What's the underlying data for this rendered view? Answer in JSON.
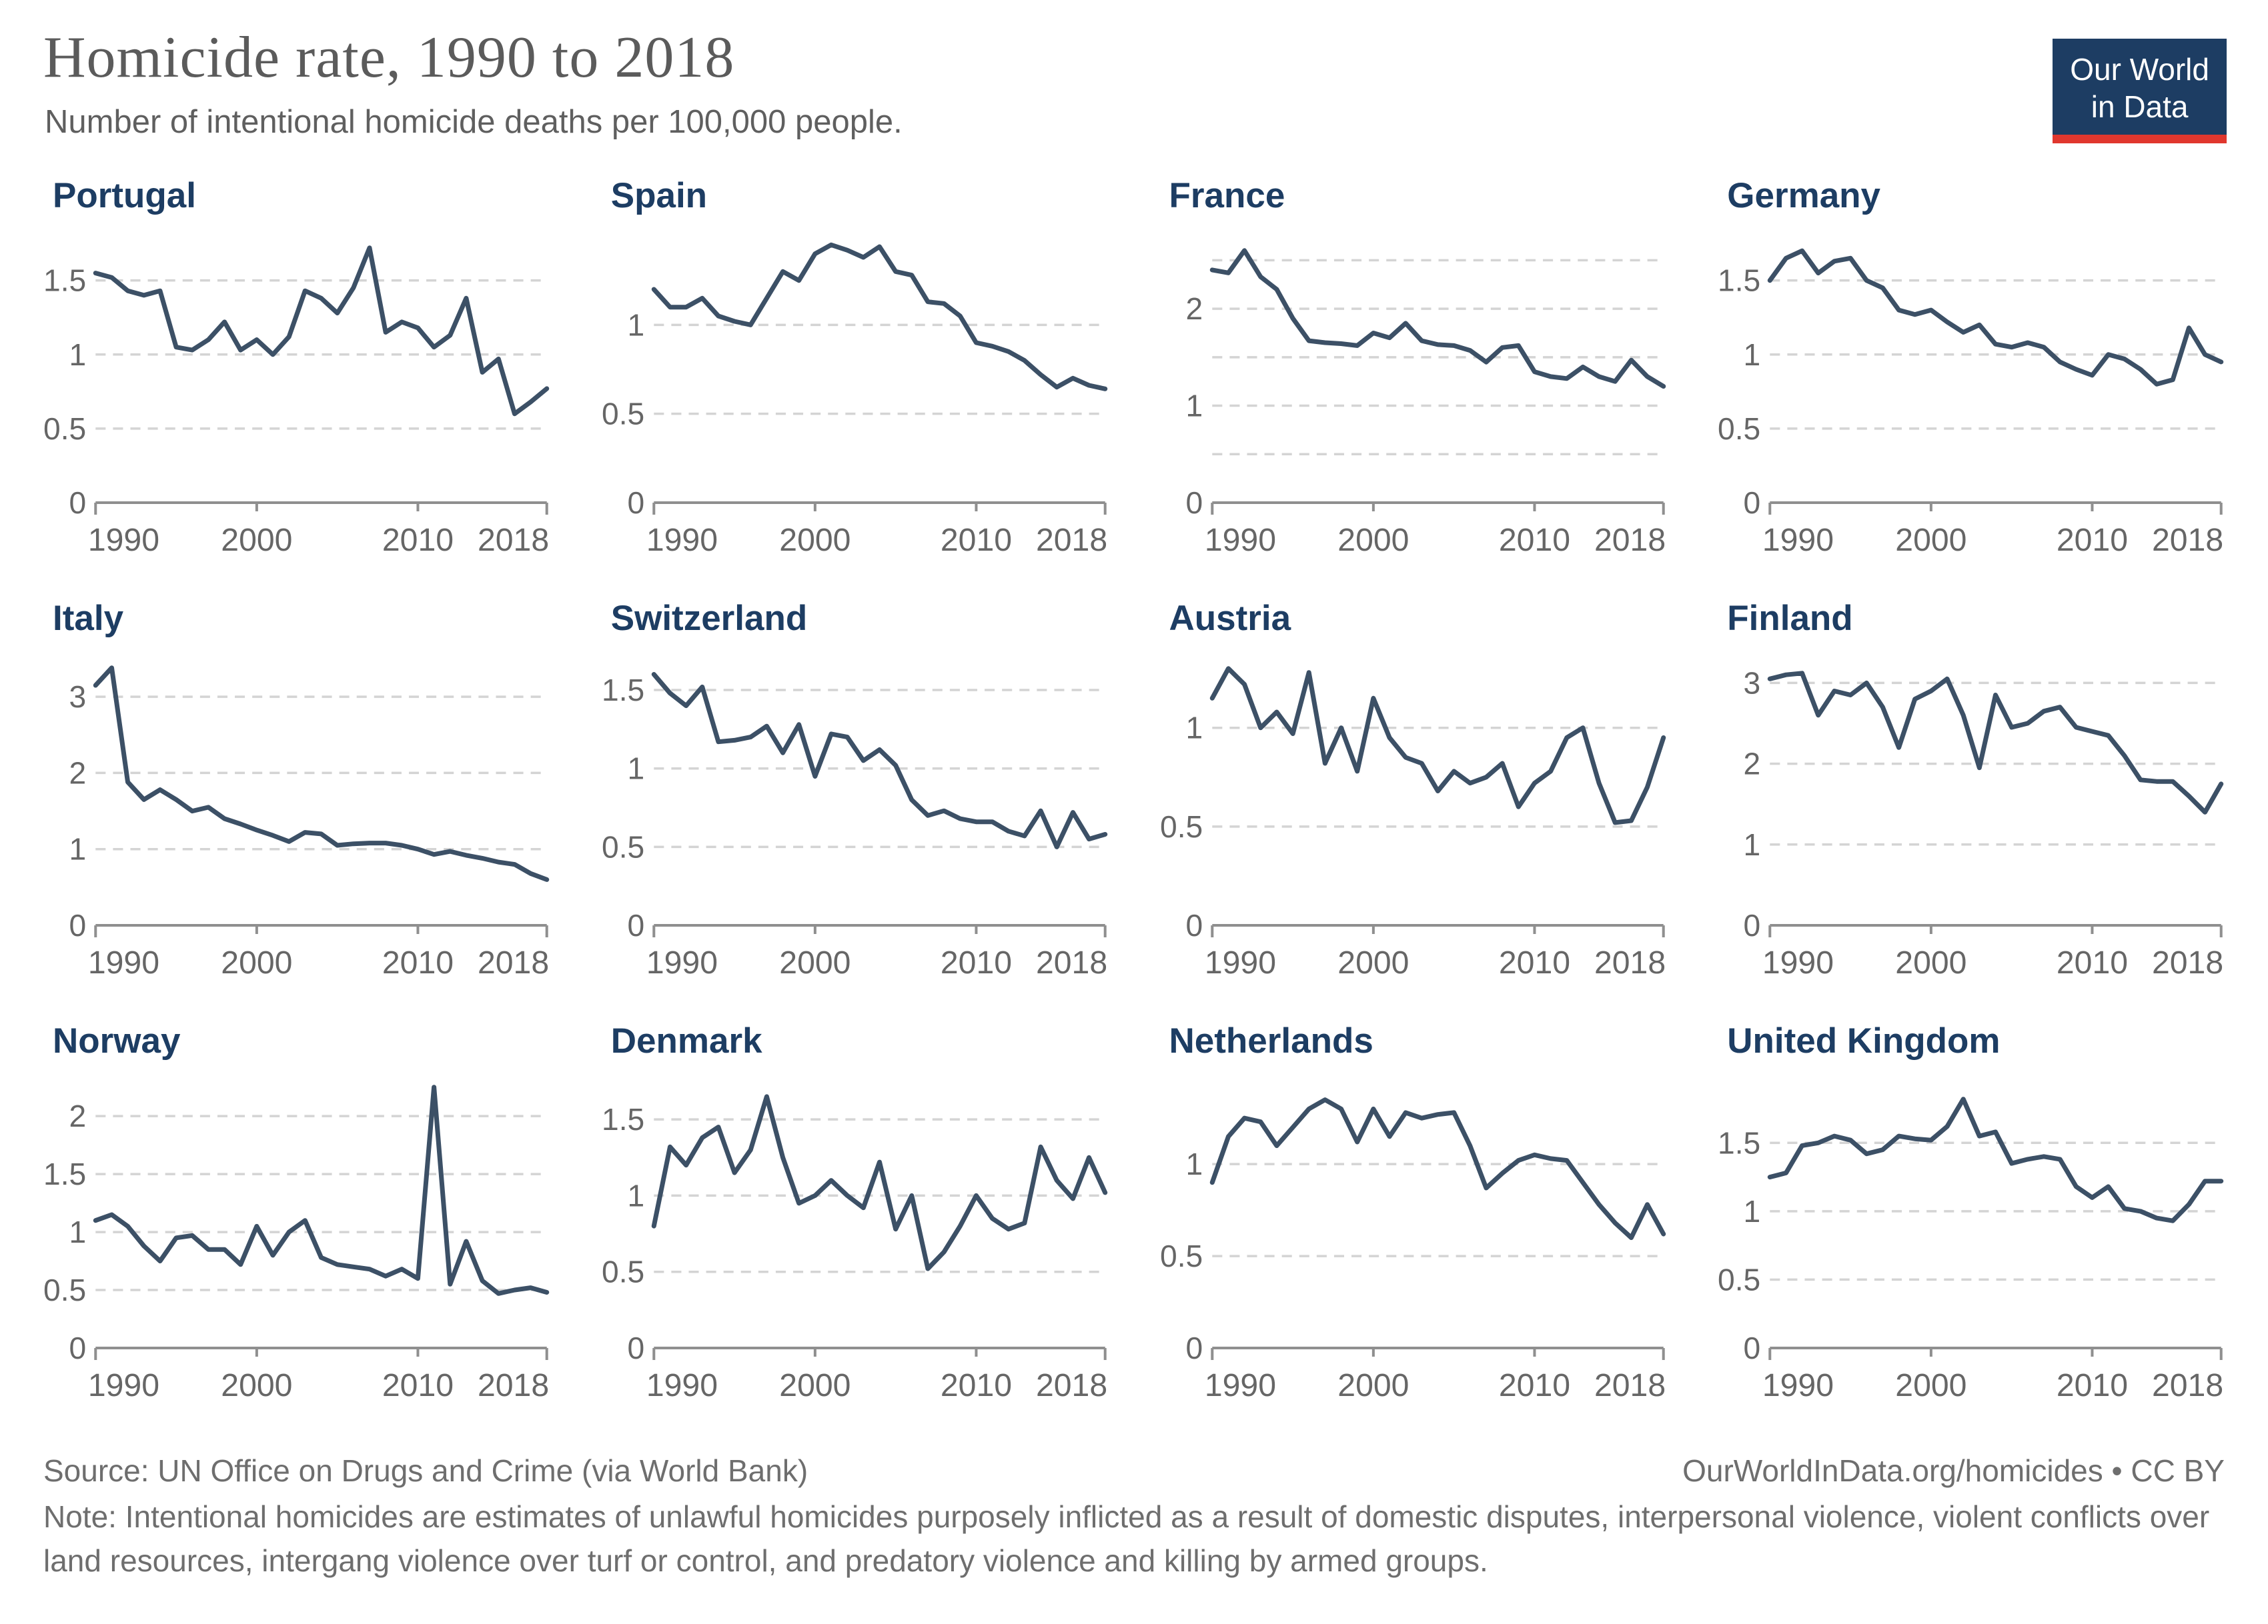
{
  "header": {
    "title": "Homicide rate, 1990 to 2018",
    "subtitle": "Number of intentional homicide deaths per 100,000 people."
  },
  "logo": {
    "line1": "Our World",
    "line2": "in Data"
  },
  "colors": {
    "line": "#3c5066",
    "country_title": "#1d3d63",
    "axis_text": "#666666",
    "gridline": "#d4d4d4",
    "axis_line": "#8f8f8f",
    "logo_bg": "#1d3d63",
    "logo_accent": "#e0372e"
  },
  "x_axis": {
    "range": [
      1990,
      2018
    ],
    "ticks": [
      {
        "year": 1990,
        "label": "1990"
      },
      {
        "year": 2000,
        "label": "2000"
      },
      {
        "year": 2010,
        "label": "2010"
      },
      {
        "year": 2018,
        "label": "2018"
      }
    ]
  },
  "chart_data": [
    {
      "type": "line",
      "title": "Portugal",
      "ylim": [
        0,
        1.8
      ],
      "yticks": [
        {
          "value": 0,
          "label": "0"
        },
        {
          "value": 0.5,
          "label": "0.5"
        },
        {
          "value": 1,
          "label": "1"
        },
        {
          "value": 1.5,
          "label": "1.5"
        }
      ],
      "gridlines": [
        0.5,
        1,
        1.5
      ],
      "x_start": 1990,
      "x_end": 2018,
      "values": [
        1.55,
        1.52,
        1.43,
        1.4,
        1.43,
        1.05,
        1.03,
        1.1,
        1.22,
        1.03,
        1.1,
        1.0,
        1.12,
        1.43,
        1.38,
        1.28,
        1.45,
        1.72,
        1.15,
        1.22,
        1.18,
        1.05,
        1.13,
        1.38,
        0.88,
        0.97,
        0.6,
        0.68,
        0.77
      ]
    },
    {
      "type": "line",
      "title": "Spain",
      "ylim": [
        0,
        1.5
      ],
      "yticks": [
        {
          "value": 0,
          "label": "0"
        },
        {
          "value": 0.5,
          "label": "0.5"
        },
        {
          "value": 1,
          "label": "1"
        }
      ],
      "gridlines": [
        0.5,
        1
      ],
      "x_start": 1990,
      "x_end": 2018,
      "values": [
        1.2,
        1.1,
        1.1,
        1.15,
        1.05,
        1.02,
        1.0,
        1.15,
        1.3,
        1.25,
        1.4,
        1.45,
        1.42,
        1.38,
        1.44,
        1.3,
        1.28,
        1.13,
        1.12,
        1.05,
        0.9,
        0.88,
        0.85,
        0.8,
        0.72,
        0.65,
        0.7,
        0.66,
        0.64
      ]
    },
    {
      "type": "line",
      "title": "France",
      "ylim": [
        0,
        2.75
      ],
      "yticks": [
        {
          "value": 0,
          "label": "0"
        },
        {
          "value": 1,
          "label": "1"
        },
        {
          "value": 2,
          "label": "2"
        }
      ],
      "gridlines": [
        0.5,
        1,
        1.5,
        2,
        2.5
      ],
      "x_start": 1990,
      "x_end": 2018,
      "values": [
        2.4,
        2.37,
        2.6,
        2.33,
        2.2,
        1.9,
        1.67,
        1.65,
        1.64,
        1.62,
        1.75,
        1.7,
        1.85,
        1.67,
        1.63,
        1.62,
        1.57,
        1.45,
        1.6,
        1.62,
        1.35,
        1.3,
        1.28,
        1.4,
        1.3,
        1.25,
        1.47,
        1.3,
        1.2
      ]
    },
    {
      "type": "line",
      "title": "Germany",
      "ylim": [
        0,
        1.8
      ],
      "yticks": [
        {
          "value": 0,
          "label": "0"
        },
        {
          "value": 0.5,
          "label": "0.5"
        },
        {
          "value": 1,
          "label": "1"
        },
        {
          "value": 1.5,
          "label": "1.5"
        }
      ],
      "gridlines": [
        0.5,
        1,
        1.5
      ],
      "x_start": 1990,
      "x_end": 2018,
      "values": [
        1.5,
        1.65,
        1.7,
        1.55,
        1.63,
        1.65,
        1.5,
        1.45,
        1.3,
        1.27,
        1.3,
        1.22,
        1.15,
        1.2,
        1.07,
        1.05,
        1.08,
        1.05,
        0.95,
        0.9,
        0.86,
        1.0,
        0.97,
        0.9,
        0.8,
        0.83,
        1.18,
        1.0,
        0.95
      ]
    },
    {
      "type": "line",
      "title": "Italy",
      "ylim": [
        0,
        3.5
      ],
      "yticks": [
        {
          "value": 0,
          "label": "0"
        },
        {
          "value": 1,
          "label": "1"
        },
        {
          "value": 2,
          "label": "2"
        },
        {
          "value": 3,
          "label": "3"
        }
      ],
      "gridlines": [
        1,
        2,
        3
      ],
      "x_start": 1990,
      "x_end": 2018,
      "values": [
        3.15,
        3.38,
        1.88,
        1.65,
        1.78,
        1.65,
        1.5,
        1.55,
        1.4,
        1.33,
        1.25,
        1.18,
        1.1,
        1.22,
        1.2,
        1.05,
        1.07,
        1.08,
        1.08,
        1.05,
        1.0,
        0.93,
        0.97,
        0.92,
        0.88,
        0.83,
        0.8,
        0.68,
        0.6
      ]
    },
    {
      "type": "line",
      "title": "Switzerland",
      "ylim": [
        0,
        1.7
      ],
      "yticks": [
        {
          "value": 0,
          "label": "0"
        },
        {
          "value": 0.5,
          "label": "0.5"
        },
        {
          "value": 1,
          "label": "1"
        },
        {
          "value": 1.5,
          "label": "1.5"
        }
      ],
      "gridlines": [
        0.5,
        1,
        1.5
      ],
      "x_start": 1990,
      "x_end": 2018,
      "values": [
        1.6,
        1.48,
        1.4,
        1.52,
        1.17,
        1.18,
        1.2,
        1.27,
        1.1,
        1.28,
        0.95,
        1.22,
        1.2,
        1.05,
        1.12,
        1.02,
        0.8,
        0.7,
        0.73,
        0.68,
        0.66,
        0.66,
        0.6,
        0.57,
        0.73,
        0.5,
        0.72,
        0.55,
        0.58
      ]
    },
    {
      "type": "line",
      "title": "Austria",
      "ylim": [
        0,
        1.35
      ],
      "yticks": [
        {
          "value": 0,
          "label": "0"
        },
        {
          "value": 0.5,
          "label": "0.5"
        },
        {
          "value": 1,
          "label": "1"
        }
      ],
      "gridlines": [
        0.5,
        1
      ],
      "x_start": 1990,
      "x_end": 2018,
      "values": [
        1.15,
        1.3,
        1.22,
        1.0,
        1.08,
        0.97,
        1.28,
        0.82,
        1.0,
        0.78,
        1.15,
        0.95,
        0.85,
        0.82,
        0.68,
        0.78,
        0.72,
        0.75,
        0.82,
        0.6,
        0.72,
        0.78,
        0.95,
        1.0,
        0.72,
        0.52,
        0.53,
        0.7,
        0.95
      ]
    },
    {
      "type": "line",
      "title": "Finland",
      "ylim": [
        0,
        3.3
      ],
      "yticks": [
        {
          "value": 0,
          "label": "0"
        },
        {
          "value": 1,
          "label": "1"
        },
        {
          "value": 2,
          "label": "2"
        },
        {
          "value": 3,
          "label": "3"
        }
      ],
      "gridlines": [
        1,
        2,
        3
      ],
      "x_start": 1990,
      "x_end": 2018,
      "values": [
        3.05,
        3.1,
        3.12,
        2.6,
        2.9,
        2.85,
        3.0,
        2.7,
        2.2,
        2.8,
        2.9,
        3.05,
        2.6,
        1.95,
        2.85,
        2.45,
        2.5,
        2.65,
        2.7,
        2.45,
        2.4,
        2.35,
        2.1,
        1.8,
        1.78,
        1.78,
        1.6,
        1.4,
        1.75
      ]
    },
    {
      "type": "line",
      "title": "Norway",
      "ylim": [
        0,
        2.3
      ],
      "yticks": [
        {
          "value": 0,
          "label": "0"
        },
        {
          "value": 0.5,
          "label": "0.5"
        },
        {
          "value": 1,
          "label": "1"
        },
        {
          "value": 1.5,
          "label": "1.5"
        },
        {
          "value": 2,
          "label": "2"
        }
      ],
      "gridlines": [
        0.5,
        1,
        1.5,
        2
      ],
      "x_start": 1990,
      "x_end": 2018,
      "values": [
        1.1,
        1.15,
        1.05,
        0.88,
        0.75,
        0.95,
        0.97,
        0.85,
        0.85,
        0.72,
        1.05,
        0.8,
        1.0,
        1.1,
        0.78,
        0.72,
        0.7,
        0.68,
        0.62,
        0.68,
        0.6,
        2.25,
        0.55,
        0.92,
        0.58,
        0.47,
        0.5,
        0.52,
        0.48
      ]
    },
    {
      "type": "line",
      "title": "Denmark",
      "ylim": [
        0,
        1.75
      ],
      "yticks": [
        {
          "value": 0,
          "label": "0"
        },
        {
          "value": 0.5,
          "label": "0.5"
        },
        {
          "value": 1,
          "label": "1"
        },
        {
          "value": 1.5,
          "label": "1.5"
        }
      ],
      "gridlines": [
        0.5,
        1,
        1.5
      ],
      "x_start": 1990,
      "x_end": 2018,
      "values": [
        0.8,
        1.32,
        1.2,
        1.38,
        1.45,
        1.15,
        1.3,
        1.65,
        1.25,
        0.95,
        1.0,
        1.1,
        1.0,
        0.92,
        1.22,
        0.78,
        1.0,
        0.52,
        0.63,
        0.8,
        1.0,
        0.85,
        0.78,
        0.82,
        1.32,
        1.1,
        0.98,
        1.25,
        1.02
      ]
    },
    {
      "type": "line",
      "title": "Netherlands",
      "ylim": [
        0,
        1.45
      ],
      "yticks": [
        {
          "value": 0,
          "label": "0"
        },
        {
          "value": 0.5,
          "label": "0.5"
        },
        {
          "value": 1,
          "label": "1"
        }
      ],
      "gridlines": [
        0.5,
        1
      ],
      "x_start": 1990,
      "x_end": 2018,
      "values": [
        0.9,
        1.15,
        1.25,
        1.23,
        1.1,
        1.2,
        1.3,
        1.35,
        1.3,
        1.12,
        1.3,
        1.15,
        1.28,
        1.25,
        1.27,
        1.28,
        1.1,
        0.87,
        0.95,
        1.02,
        1.05,
        1.03,
        1.02,
        0.9,
        0.78,
        0.68,
        0.6,
        0.78,
        0.62
      ]
    },
    {
      "type": "line",
      "title": "United Kingdom",
      "ylim": [
        0,
        1.95
      ],
      "yticks": [
        {
          "value": 0,
          "label": "0"
        },
        {
          "value": 0.5,
          "label": "0.5"
        },
        {
          "value": 1,
          "label": "1"
        },
        {
          "value": 1.5,
          "label": "1.5"
        }
      ],
      "gridlines": [
        0.5,
        1,
        1.5
      ],
      "x_start": 1990,
      "x_end": 2018,
      "values": [
        1.25,
        1.28,
        1.48,
        1.5,
        1.55,
        1.52,
        1.42,
        1.45,
        1.55,
        1.53,
        1.52,
        1.62,
        1.82,
        1.55,
        1.58,
        1.35,
        1.38,
        1.4,
        1.38,
        1.18,
        1.1,
        1.18,
        1.02,
        1.0,
        0.95,
        0.93,
        1.05,
        1.22,
        1.22
      ]
    }
  ],
  "footer": {
    "source": "Source: UN Office on Drugs and Crime (via World Bank)",
    "link": "OurWorldInData.org/homicides • CC BY",
    "note": "Note: Intentional homicides are estimates of unlawful homicides purposely inflicted as a result of domestic disputes, interpersonal violence, violent conflicts over land resources, intergang violence over turf or control, and predatory violence and killing by armed groups."
  }
}
